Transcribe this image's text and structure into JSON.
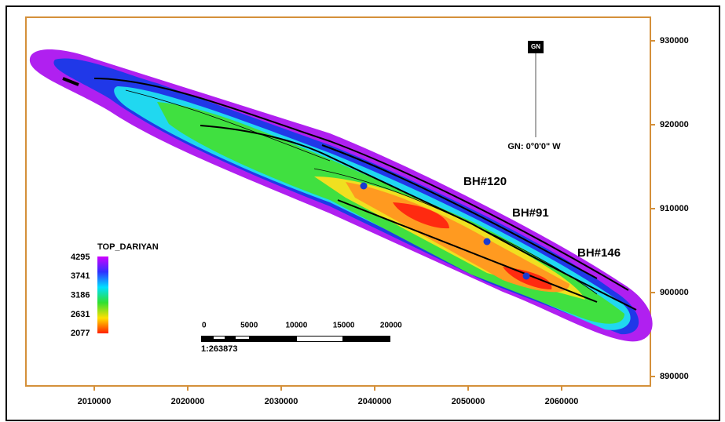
{
  "map": {
    "x_ticks": [
      2010000,
      2020000,
      2030000,
      2040000,
      2050000,
      2060000
    ],
    "y_ticks": [
      930000,
      920000,
      910000,
      900000,
      890000
    ],
    "legend": {
      "title": "TOP_DARIYAN",
      "labels": [
        4295,
        3741,
        3186,
        2631,
        2077
      ]
    },
    "wells": [
      {
        "label": "BH#120"
      },
      {
        "label": "BH#91"
      },
      {
        "label": "BH#146"
      }
    ],
    "scale_bar": {
      "labels": [
        0,
        5000,
        10000,
        15000,
        20000
      ],
      "ratio": "1:263873"
    },
    "north_arrow": {
      "label": "GN",
      "declination": "GN: 0°0'0\" W"
    }
  }
}
